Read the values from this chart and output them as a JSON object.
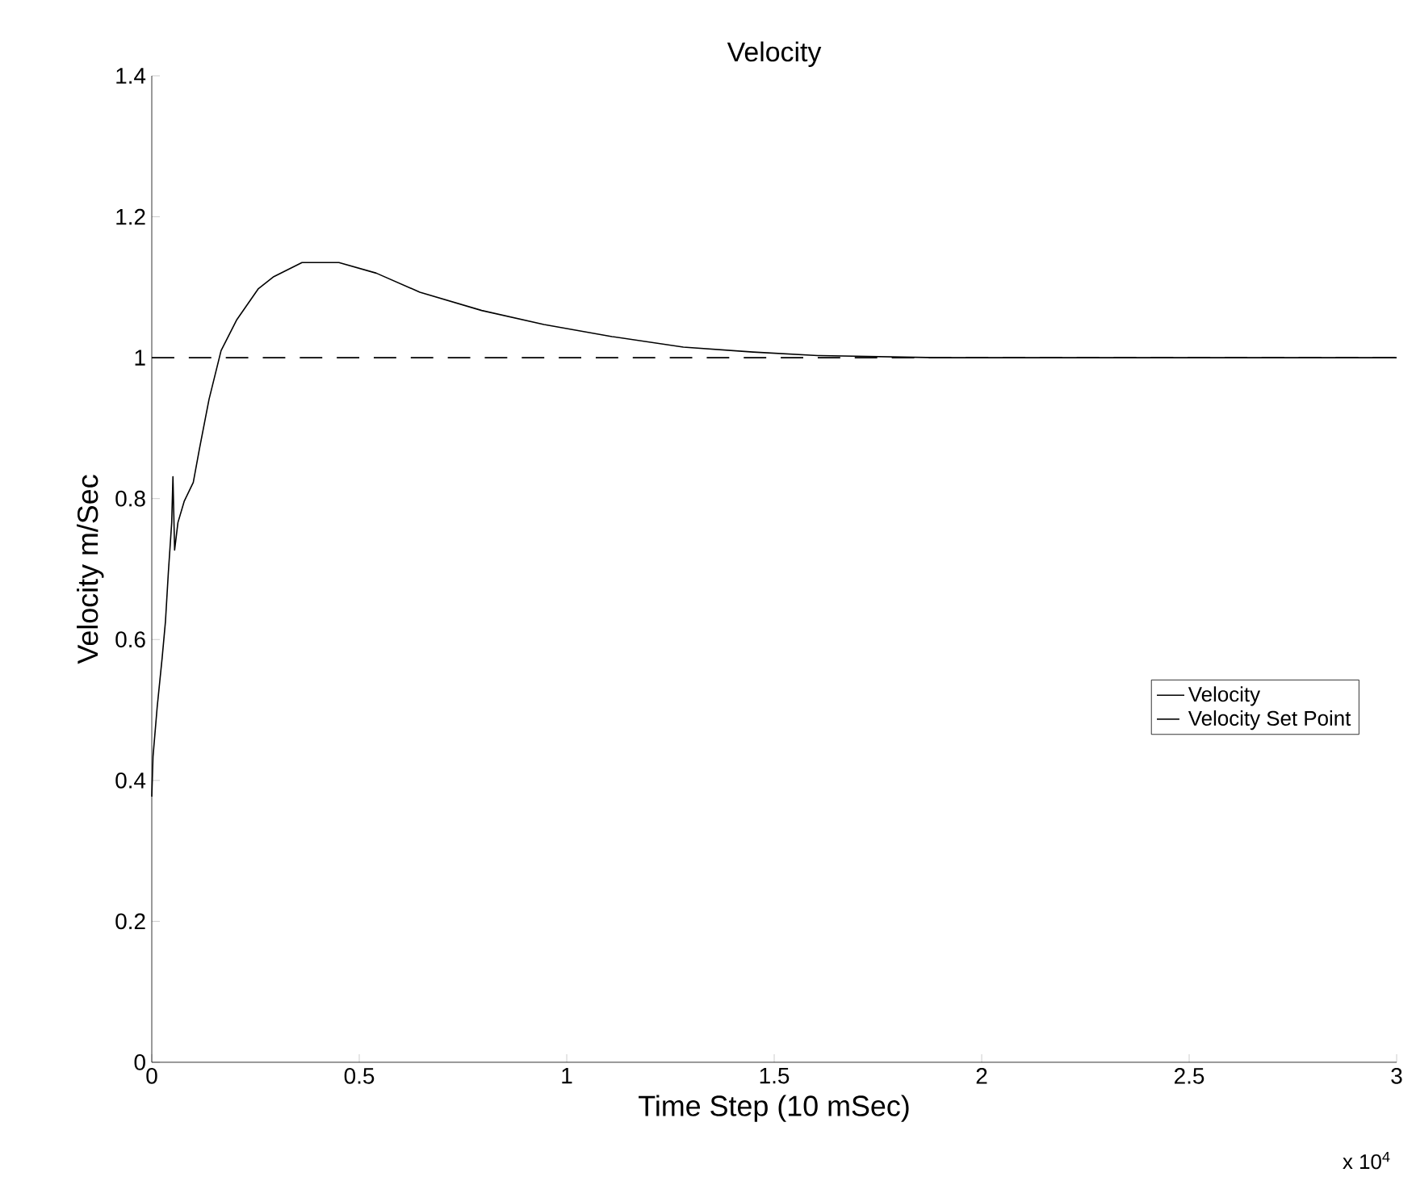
{
  "chart_data": {
    "type": "line",
    "title": "Velocity",
    "xlabel": "Time Step (10 mSec)",
    "ylabel": "Velocity m/Sec",
    "annotations": [
      "x 10$^{4}$"
    ],
    "xlim": [
      0,
      3
    ],
    "ylim": [
      0,
      1.4
    ],
    "xticks": [
      0,
      0.5,
      1,
      1.5,
      2,
      2.5,
      3
    ],
    "yticks": [
      0,
      0.2,
      0.4,
      0.6,
      0.8,
      1,
      1.2,
      1.4
    ],
    "grid": false,
    "legend": "right",
    "series": [
      {
        "name": "Velocity",
        "color": "#000000",
        "line_style": "solid",
        "x": [
          0,
          0.003,
          0.013,
          0.025,
          0.033,
          0.04,
          0.048,
          0.051,
          0.055,
          0.063,
          0.078,
          0.1,
          0.115,
          0.138,
          0.167,
          0.205,
          0.257,
          0.294,
          0.362,
          0.451,
          0.541,
          0.646,
          0.795,
          0.945,
          1.109,
          1.281,
          1.449,
          1.605,
          1.895,
          3
        ],
        "values": [
          0.377,
          0.434,
          0.504,
          0.574,
          0.626,
          0.696,
          0.766,
          0.831,
          0.727,
          0.766,
          0.796,
          0.823,
          0.871,
          0.941,
          1.01,
          1.054,
          1.098,
          1.115,
          1.135,
          1.135,
          1.12,
          1.093,
          1.067,
          1.047,
          1.03,
          1.015,
          1.008,
          1.003,
          1.0,
          1.0
        ]
      },
      {
        "name": "Velocity Set Point",
        "color": "#000000",
        "line_style": "dashed",
        "x": [
          0,
          3
        ],
        "values": [
          1,
          1
        ]
      }
    ]
  }
}
